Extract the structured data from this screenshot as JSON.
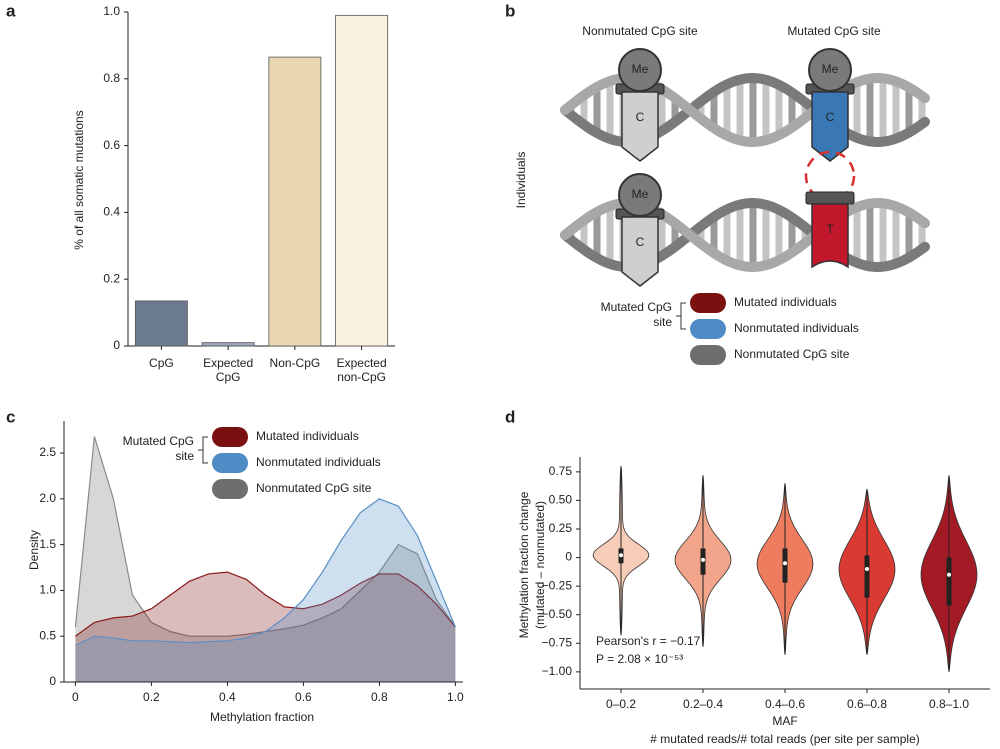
{
  "chart_data": [
    {
      "panel": "a",
      "type": "bar",
      "ylabel": "% of all somatic mutations",
      "categories": [
        "CpG",
        "Expected CpG",
        "Non-CpG",
        "Expected non-CpG"
      ],
      "values": [
        0.135,
        0.01,
        0.865,
        0.99
      ],
      "colors": [
        "#6b7a8f",
        "#9aa5bd",
        "#e8d6b0",
        "#fbf1e1"
      ],
      "ylim": [
        0,
        1
      ],
      "yticks": [
        0,
        0.2,
        0.4,
        0.6,
        0.8,
        {
          "value": 1,
          "label": "1.0"
        }
      ]
    },
    {
      "panel": "c",
      "type": "density",
      "xlabel": "Methylation fraction",
      "ylabel": "Density",
      "legend_group": "Mutated CpG site",
      "x": [
        0,
        0.05,
        0.1,
        0.15,
        0.2,
        0.25,
        0.3,
        0.35,
        0.4,
        0.45,
        0.5,
        0.55,
        0.6,
        0.65,
        0.7,
        0.75,
        0.8,
        0.85,
        0.9,
        0.95,
        1
      ],
      "series": [
        {
          "name": "Mutated individuals",
          "color": "#7a1010",
          "line": "#8b1a1a",
          "values": [
            0.5,
            0.65,
            0.7,
            0.72,
            0.8,
            0.95,
            1.1,
            1.18,
            1.2,
            1.12,
            0.95,
            0.82,
            0.8,
            0.85,
            0.95,
            1.08,
            1.18,
            1.18,
            1.05,
            0.85,
            0.6
          ]
        },
        {
          "name": "Nonmutated individuals",
          "color": "#4f8cc6",
          "line": "#5b8fc7",
          "values": [
            0.4,
            0.5,
            0.48,
            0.45,
            0.45,
            0.44,
            0.43,
            0.44,
            0.45,
            0.48,
            0.55,
            0.7,
            0.9,
            1.2,
            1.55,
            1.85,
            2.0,
            1.92,
            1.6,
            1.1,
            0.6
          ]
        },
        {
          "name": "Nonmutated CpG site",
          "color": "#6e6e6e",
          "line": "#8a8a8a",
          "values": [
            0.6,
            2.68,
            2.0,
            0.95,
            0.65,
            0.55,
            0.5,
            0.5,
            0.5,
            0.52,
            0.55,
            0.58,
            0.62,
            0.7,
            0.8,
            1.0,
            1.2,
            1.5,
            1.4,
            0.9,
            0.6
          ]
        }
      ],
      "xlim": [
        -0.03,
        1.02
      ],
      "xticks": [
        0,
        0.2,
        0.4,
        0.6,
        0.8,
        {
          "value": 1,
          "label": "1.0"
        }
      ],
      "ylim": [
        0,
        2.85
      ],
      "yticks": [
        0,
        0.5,
        {
          "value": 1,
          "label": "1.0"
        },
        1.5,
        {
          "value": 2,
          "label": "2.0"
        },
        2.5
      ]
    },
    {
      "panel": "d",
      "type": "violin",
      "ylabel": [
        "Methylation fraction change",
        "(mutated – nonmutated)"
      ],
      "xlabel": "MAF",
      "xlabel2": "# mutated reads/# total reads (per site per sample)",
      "annotations": [
        "Pearson's r = −0.17",
        "P = 2.08 × 10⁻⁵³"
      ],
      "categories": [
        "0–0.2",
        "0.2–0.4",
        "0.4–0.6",
        "0.6–0.8",
        "0.8–1.0"
      ],
      "colors": [
        "#f7cdb8",
        "#f2a58a",
        "#ee7c5f",
        "#d93b33",
        "#a21b24"
      ],
      "min": [
        -0.68,
        -0.78,
        -0.85,
        -0.85,
        -1.0
      ],
      "q1": [
        -0.05,
        -0.15,
        -0.22,
        -0.35,
        -0.42
      ],
      "median": [
        0.02,
        -0.02,
        -0.05,
        -0.1,
        -0.15
      ],
      "q3": [
        0.08,
        0.08,
        0.08,
        0.02,
        0.0
      ],
      "max": [
        0.8,
        0.72,
        0.65,
        0.6,
        0.72
      ],
      "ylim": [
        -1.15,
        0.88
      ],
      "yticks": [
        {
          "value": -1,
          "label": "−1.00"
        },
        {
          "value": -0.75,
          "label": "−0.75"
        },
        {
          "value": -0.5,
          "label": "−0.50"
        },
        {
          "value": -0.25,
          "label": "−0.25"
        },
        0,
        {
          "value": 0.25,
          "label": "0.25"
        },
        {
          "value": 0.5,
          "label": "0.50"
        },
        {
          "value": 0.75,
          "label": "0.75"
        }
      ]
    }
  ],
  "diagram": {
    "panel": "b",
    "site_labels": [
      "Nonmutated CpG site",
      "Mutated CpG site"
    ],
    "side_label": "Individuals",
    "me": [
      "Me",
      "Me",
      "Me"
    ],
    "bases": [
      "C",
      "C",
      "C",
      "T"
    ],
    "legend_group": "Mutated CpG site",
    "legend": [
      {
        "name": "Mutated individuals",
        "color": "#7a1010"
      },
      {
        "name": "Nonmutated individuals",
        "color": "#4f8cc6"
      },
      {
        "name": "Nonmutated CpG site",
        "color": "#6e6e6e"
      }
    ]
  }
}
